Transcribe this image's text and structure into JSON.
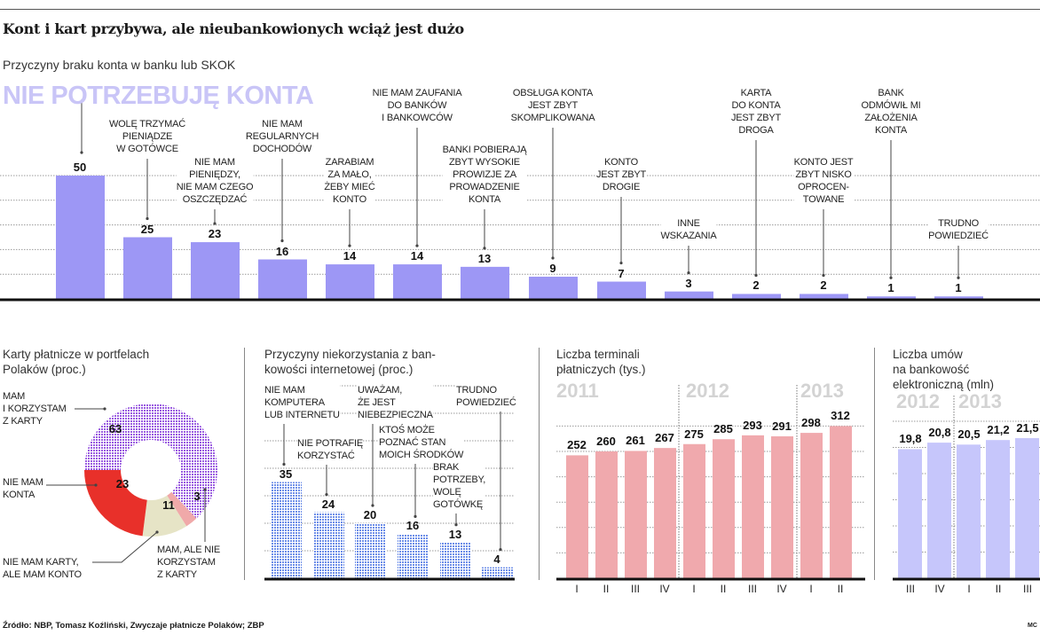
{
  "title": "Kont i kart przybywa, ale nieubankowionych wciąż jest dużo",
  "subtitle": "Przyczyny braku konta w banku lub SKOK",
  "source": "Źródło: NBP, Tomasz Koźliński, Zwyczaje płatnicze Polaków; ZBP",
  "credit": "MC",
  "colors": {
    "top_bars": "#9d97f5",
    "donut_purple": "#9a5ce0",
    "donut_red": "#e8302a",
    "donut_beige": "#e6e4c6",
    "donut_pink": "#f0a9a9",
    "internet_bars": "#6d8ee8",
    "terminal_bars": "#f0a9ad",
    "ebank_bars": "#c6c6fb"
  },
  "chart_data": [
    {
      "type": "bar",
      "title": "Przyczyny braku konta w banku lub SKOK",
      "categories": [
        "NIE POTRZEBUJĘ KONTA",
        "WOLĘ TRZYMAĆ\nPIENIĄDZE\nW GOTÓWCE",
        "NIE MAM\nPIENIĘDZY,\nNIE MAM CZEGO\nOSZCZĘDZAĆ",
        "NIE MAM\nREGULARNYCH\nDOCHODÓW",
        "ZARABIAM\nZA MAŁO,\nŻEBY MIEĆ\nKONTO",
        "NIE MAM ZAUFANIA\nDO BANKÓW\nI BANKOWCÓW",
        "BANKI POBIERAJĄ\nZBYT WYSOKIE\nPROWIZJE ZA\nPROWADZENIE\nKONTA",
        "OBSŁUGA KONTA\nJEST ZBYT\nSKOMPLIKOWANA",
        "KONTO\nJEST ZBYT\nDROGIE",
        "INNE\nWSKAZANIA",
        "KARTA\nDO KONTA\nJEST ZBYT\nDROGA",
        "KONTO JEST\nZBYT NISKO\nOPROCEN-\nTOWANE",
        "BANK\nODMÓWIŁ MI\nZAŁOŻENIA\nKONTA",
        "TRUDNO\nPOWIEDZIEĆ"
      ],
      "values": [
        50,
        25,
        23,
        16,
        14,
        14,
        13,
        9,
        7,
        3,
        2,
        2,
        1,
        1
      ],
      "ylim": [
        0,
        50
      ],
      "grid": true
    },
    {
      "type": "pie",
      "title": "Karty płatnicze w portfelach\nPolaków (proc.)",
      "categories": [
        "MAM\nI KORZYSTAM\nZ KARTY",
        "MAM, ALE NIE\nKORZYSTAM\nZ KARTY",
        "NIE MAM KARTY,\nALE MAM KONTO",
        "NIE MAM\nKONTA"
      ],
      "values": [
        63,
        3,
        11,
        23
      ],
      "donut": true
    },
    {
      "type": "bar",
      "title": "Przyczyny niekorzystania z ban-\nkowości internetowej (proc.)",
      "categories": [
        "NIE MAM\nKOMPUTERA\nLUB INTERNETU",
        "NIE POTRAFIĘ\nKORZYSTAĆ",
        "UWAŻAM,\nŻE JEST\nNIEBEZPIECZNA",
        "KTOŚ MOŻE\nPOZNAĆ STAN\nMOICH ŚRODKÓW",
        "BRAK\nPOTRZEBY,\nWOLĘ\nGOTÓWKĘ",
        "TRUDNO\nPOWIEDZIEĆ"
      ],
      "values": [
        35,
        24,
        20,
        16,
        13,
        4
      ],
      "ylim": [
        0,
        70
      ],
      "grid": true
    },
    {
      "type": "bar",
      "title": "Liczba terminali\npłatniczych (tys.)",
      "groups": [
        "2011",
        "2012",
        "2013"
      ],
      "categories": [
        "I",
        "II",
        "III",
        "IV",
        "I",
        "II",
        "III",
        "IV",
        "I",
        "II"
      ],
      "values": [
        252,
        260,
        261,
        267,
        275,
        285,
        293,
        291,
        298,
        312
      ],
      "ylim": [
        0,
        330
      ],
      "grid": true
    },
    {
      "type": "bar",
      "title": "Liczba umów\nna bankowość\nelektroniczną (mln)",
      "groups": [
        "2012",
        "2013"
      ],
      "categories": [
        "III",
        "IV",
        "I",
        "II",
        "III"
      ],
      "values": [
        "19,8",
        "20,8",
        "20,5",
        "21,2",
        "21,5"
      ],
      "grid": true
    }
  ]
}
